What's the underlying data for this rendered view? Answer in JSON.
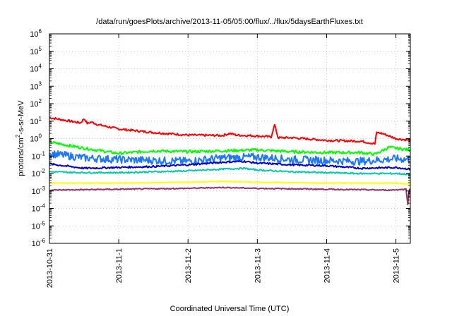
{
  "chart_data": {
    "type": "line",
    "title": "/data/run/goesPlots/archive/2013-11-05/05:00/flux/../flux/5daysEarthFluxes.txt",
    "xlabel": "Coordinated Universal Time (UTC)",
    "ylabel_prefix": "protons/cm",
    "ylabel_sup": "2",
    "ylabel_suffix": "-s-sr-MeV",
    "y_scale": "log",
    "ylim": [
      1e-06,
      1000000.0
    ],
    "xlim": [
      "2013-10-31 00:00",
      "2013-11-05 05:00"
    ],
    "grid": true,
    "x_ticks": [
      "2013-10-31",
      "2013-11-1",
      "2013-11-2",
      "2013-11-3",
      "2013-11-4",
      "2013-11-5"
    ],
    "y_ticks": [
      {
        "base": "10",
        "exp": "6"
      },
      {
        "base": "10",
        "exp": "5"
      },
      {
        "base": "10",
        "exp": "4"
      },
      {
        "base": "10",
        "exp": "3"
      },
      {
        "base": "10",
        "exp": "2"
      },
      {
        "base": "10",
        "exp": "1"
      },
      {
        "base": "10",
        "exp": "0"
      },
      {
        "base": "10",
        "exp": "-1"
      },
      {
        "base": "10",
        "exp": "-2"
      },
      {
        "base": "10",
        "exp": "-3"
      },
      {
        "base": "10",
        "exp": "-4"
      },
      {
        "base": "10",
        "exp": "-5"
      },
      {
        "base": "10",
        "exp": "-6"
      }
    ],
    "series": [
      {
        "color": "#ff0000",
        "noise": 0.06,
        "x_days": [
          0,
          0.3,
          0.45,
          0.5,
          0.55,
          0.6,
          0.7,
          1.0,
          1.5,
          2.0,
          2.5,
          2.6,
          2.7,
          3.0,
          3.2,
          3.25,
          3.3,
          3.5,
          4.0,
          4.5,
          4.7,
          4.72,
          4.8,
          5.0,
          5.2
        ],
        "log_y": [
          1.2,
          1.0,
          0.9,
          1.15,
          0.85,
          0.95,
          0.8,
          0.55,
          0.35,
          0.2,
          0.18,
          0.3,
          0.2,
          0.15,
          0.1,
          0.8,
          0.05,
          0.05,
          -0.1,
          -0.15,
          -0.3,
          0.35,
          0.3,
          0.0,
          -0.1
        ]
      },
      {
        "color": "#00ff00",
        "noise": 0.08,
        "x_days": [
          0,
          0.5,
          1.0,
          1.5,
          2.0,
          2.5,
          3.0,
          3.5,
          4.0,
          4.5,
          4.7,
          4.9,
          5.0,
          5.2
        ],
        "log_y": [
          -0.2,
          -0.55,
          -0.85,
          -0.7,
          -0.75,
          -0.7,
          -0.65,
          -0.75,
          -0.8,
          -0.8,
          -0.9,
          -0.5,
          -0.55,
          -0.65
        ]
      },
      {
        "color": "#1e78ff",
        "noise": 0.22,
        "x_days": [
          0,
          0.5,
          1.0,
          1.5,
          2.0,
          2.5,
          3.0,
          3.5,
          4.0,
          4.5,
          5.0,
          5.2
        ],
        "log_y": [
          -0.85,
          -1.1,
          -1.2,
          -1.25,
          -1.3,
          -1.1,
          -1.05,
          -1.2,
          -1.25,
          -1.3,
          -1.15,
          -1.2
        ]
      },
      {
        "color": "#0000cc",
        "noise": 0.05,
        "x_days": [
          0,
          0.5,
          1.0,
          1.5,
          2.0,
          2.5,
          2.8,
          3.0,
          3.5,
          4.0,
          4.5,
          5.0,
          5.2
        ],
        "log_y": [
          -1.45,
          -1.7,
          -1.65,
          -1.6,
          -1.5,
          -1.35,
          -1.3,
          -1.4,
          -1.5,
          -1.55,
          -1.7,
          -1.65,
          -1.75
        ]
      },
      {
        "color": "#00ccaa",
        "noise": 0.04,
        "x_days": [
          0,
          0.5,
          1.0,
          1.5,
          2.0,
          2.5,
          2.8,
          3.0,
          3.5,
          4.0,
          4.5,
          5.0,
          5.2
        ],
        "log_y": [
          -1.9,
          -1.95,
          -1.95,
          -1.9,
          -1.85,
          -1.75,
          -1.7,
          -1.8,
          -1.9,
          -1.95,
          -2.0,
          -2.0,
          -2.05
        ]
      },
      {
        "color": "#ffff00",
        "noise": 0.02,
        "x_days": [
          0,
          1.0,
          2.0,
          2.5,
          3.0,
          4.0,
          5.0,
          5.2
        ],
        "log_y": [
          -2.55,
          -2.55,
          -2.5,
          -2.45,
          -2.5,
          -2.55,
          -2.55,
          -2.6
        ]
      },
      {
        "color": "#993366",
        "noise": 0.03,
        "x_days": [
          0,
          1.0,
          2.0,
          2.5,
          3.0,
          4.0,
          4.9,
          5.15,
          5.17,
          5.19,
          5.2
        ],
        "log_y": [
          -2.95,
          -2.9,
          -2.85,
          -2.8,
          -2.85,
          -2.9,
          -2.95,
          -2.9,
          -3.8,
          -2.9,
          -2.95
        ]
      }
    ]
  }
}
